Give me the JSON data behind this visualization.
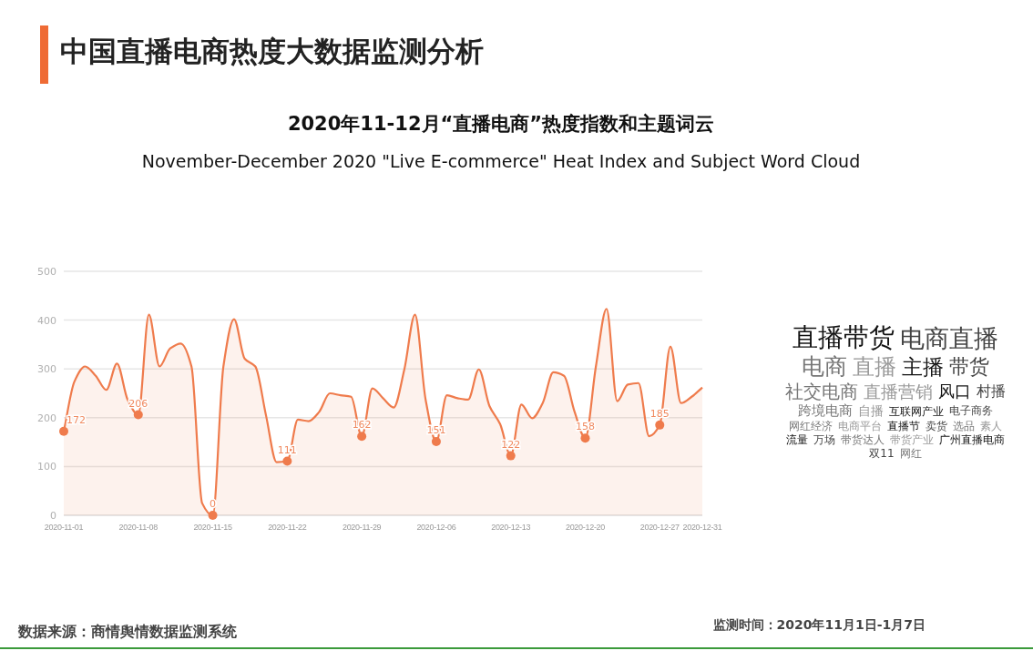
{
  "chart_data": [
    {
      "type": "area",
      "title": "2020年11-12月“直播电商”热度指数和主题词云",
      "subtitle": "November-December 2020 \"Live E-commerce\" Heat Index and Subject Word Cloud",
      "annotations": [
        "中国直播电商热度大数据监测分析",
        "数据来源：商情舆情数据监测系统",
        "监测时间：2020年11月1日-1月7日"
      ],
      "xlim": [
        "2020-11-01",
        "2020-12-31"
      ],
      "xticks": [
        "2020-11-01",
        "2020-11-08",
        "2020-11-15",
        "2020-11-22",
        "2020-11-29",
        "2020-12-06",
        "2020-12-13",
        "2020-12-20",
        "2020-12-27",
        "2020-12-31"
      ],
      "ylim": [
        0,
        500
      ],
      "yticks": [
        0,
        100,
        200,
        300,
        400,
        500
      ],
      "grid": "y",
      "series": [
        {
          "color": "#ef7b4c",
          "marker": "none",
          "x": [
            "2020-11-01",
            "2020-11-02",
            "2020-11-03",
            "2020-11-04",
            "2020-11-05",
            "2020-11-06",
            "2020-11-07",
            "2020-11-08",
            "2020-11-09",
            "2020-11-10",
            "2020-11-11",
            "2020-11-12",
            "2020-11-13",
            "2020-11-14",
            "2020-11-15",
            "2020-11-16",
            "2020-11-17",
            "2020-11-18",
            "2020-11-19",
            "2020-11-20",
            "2020-11-21",
            "2020-11-22",
            "2020-11-23",
            "2020-11-24",
            "2020-11-25",
            "2020-11-26",
            "2020-11-27",
            "2020-11-28",
            "2020-11-29",
            "2020-11-30",
            "2020-12-01",
            "2020-12-02",
            "2020-12-03",
            "2020-12-04",
            "2020-12-05",
            "2020-12-06",
            "2020-12-07",
            "2020-12-08",
            "2020-12-09",
            "2020-12-10",
            "2020-12-11",
            "2020-12-12",
            "2020-12-13",
            "2020-12-14",
            "2020-12-15",
            "2020-12-16",
            "2020-12-17",
            "2020-12-18",
            "2020-12-19",
            "2020-12-20",
            "2020-12-21",
            "2020-12-22",
            "2020-12-23",
            "2020-12-24",
            "2020-12-25",
            "2020-12-26",
            "2020-12-27",
            "2020-12-28",
            "2020-12-29",
            "2020-12-30",
            "2020-12-31"
          ],
          "values": [
            172,
            274,
            305,
            286,
            257,
            311,
            237,
            206,
            411,
            305,
            342,
            352,
            305,
            25,
            0,
            305,
            402,
            321,
            305,
            205,
            109,
            111,
            196,
            193,
            212,
            250,
            246,
            243,
            162,
            260,
            240,
            221,
            299,
            411,
            237,
            151,
            246,
            240,
            237,
            299,
            224,
            187,
            122,
            227,
            199,
            230,
            293,
            286,
            212,
            158,
            305,
            423,
            234,
            268,
            271,
            162,
            185,
            346,
            230,
            243,
            262
          ]
        },
        {
          "type": "scatter",
          "color": "#ef7b4c",
          "marker": "circle",
          "x": [
            "2020-11-01",
            "2020-11-08",
            "2020-11-15",
            "2020-11-22",
            "2020-11-29",
            "2020-12-06",
            "2020-12-13",
            "2020-12-20",
            "2020-12-27"
          ],
          "values": [
            172,
            206,
            0,
            111,
            162,
            151,
            122,
            158,
            185
          ],
          "value_labels": [
            "172",
            "206",
            "0",
            "111",
            "162",
            "151",
            "122",
            "158",
            "185"
          ]
        }
      ]
    },
    {
      "type": "other",
      "annotations": [
        "直播带货",
        "电商直播",
        "电商",
        "直播",
        "主播",
        "带货",
        "社交电商",
        "直播营销",
        "风口",
        "村播",
        "跨境电商",
        "自播",
        "互联网产业",
        "电子商务",
        "网红经济",
        "电商平台",
        "直播节",
        "卖货",
        "选品",
        "素人",
        "流量",
        "万场",
        "带货达人",
        "带货产业",
        "广州直播电商",
        "双11",
        "网红"
      ]
    }
  ]
}
